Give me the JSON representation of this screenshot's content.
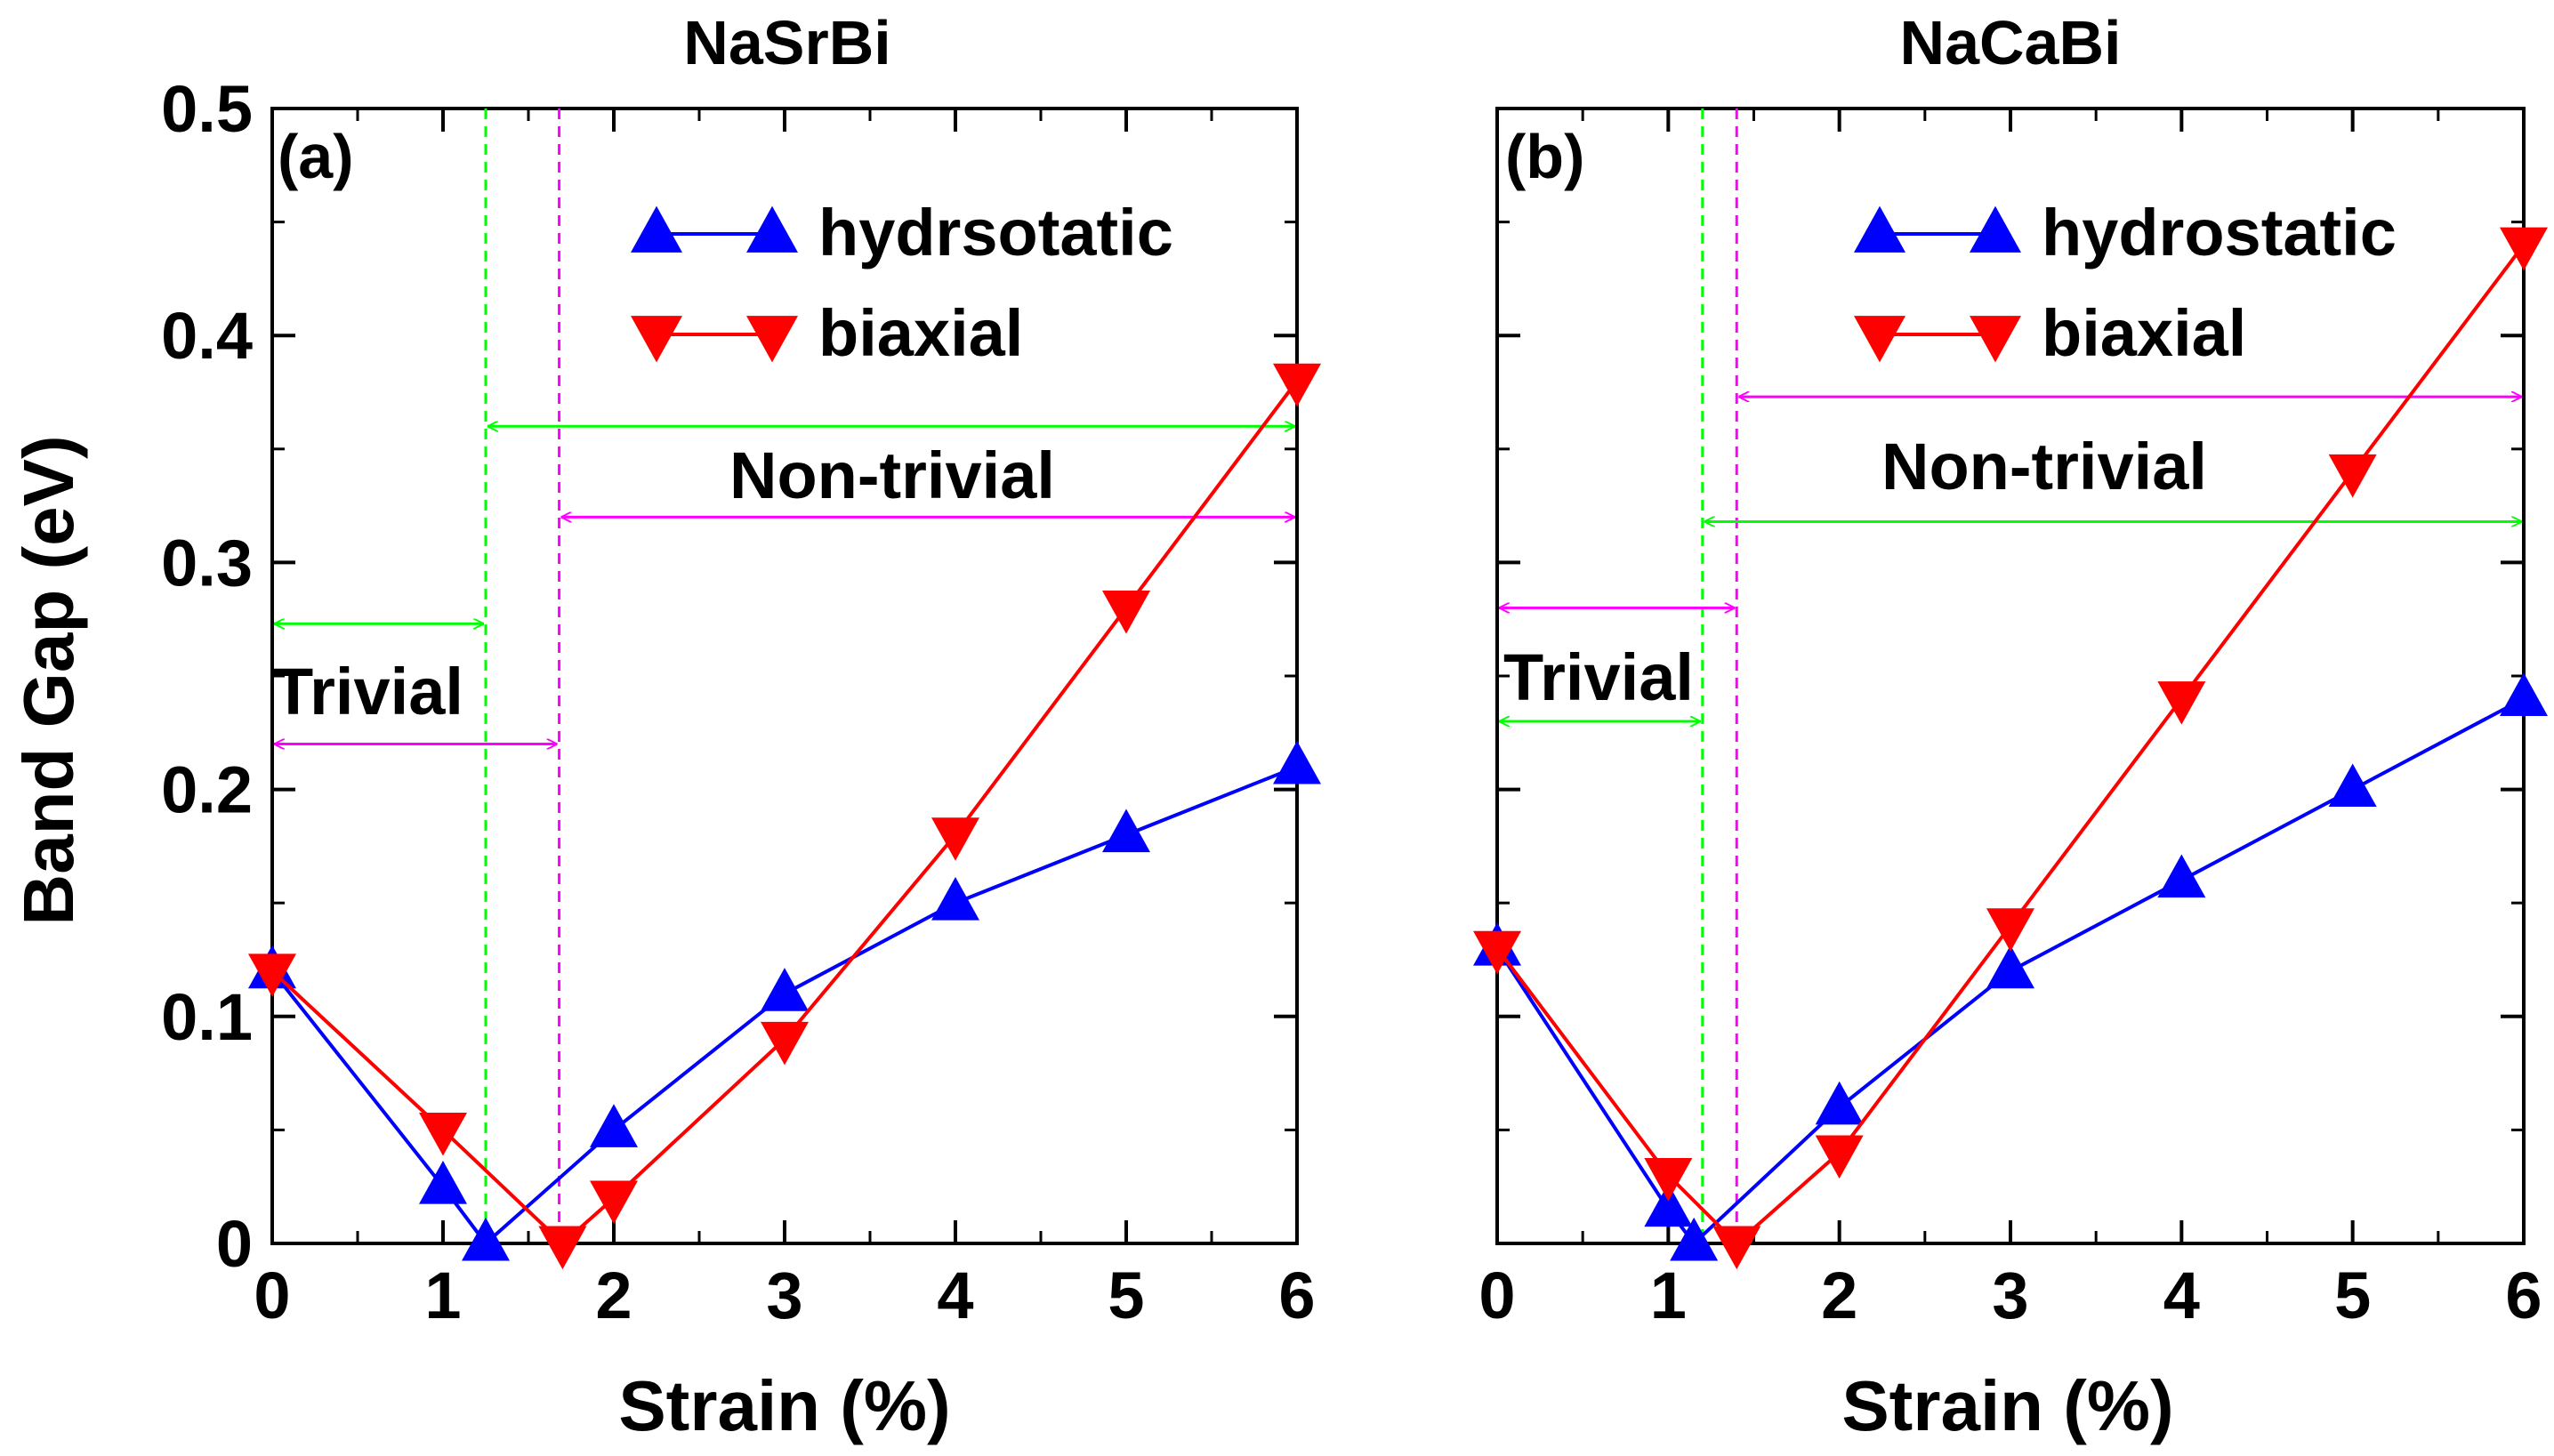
{
  "colors": {
    "hydrostatic": "#0000ff",
    "biaxial": "#ff0000",
    "green_line": "#00ff00",
    "magenta_line": "#ff00ff",
    "axis": "#000000"
  },
  "shared": {
    "ylabel": "Band Gap (eV)",
    "xlabel": "Strain (%)",
    "xlim": [
      0,
      6
    ],
    "ylim": [
      0,
      0.5
    ],
    "xticks": [
      "0",
      "1",
      "2",
      "3",
      "4",
      "5",
      "6"
    ],
    "yticks": [
      "0",
      "0.1",
      "0.2",
      "0.3",
      "0.4",
      "0.5"
    ]
  },
  "chart_data": [
    {
      "type": "line",
      "title": "NaSrBi",
      "tag": "(a)",
      "xlabel": "Strain (%)",
      "ylabel": "Band Gap (eV)",
      "xlim": [
        0,
        6
      ],
      "ylim": [
        0,
        0.5
      ],
      "series": [
        {
          "name": "hydrsotatic",
          "marker": "triangle-up",
          "x": [
            0,
            1,
            1.25,
            2,
            3,
            4,
            5,
            6
          ],
          "y": [
            0.12,
            0.025,
            0.0,
            0.05,
            0.11,
            0.15,
            0.18,
            0.21
          ]
        },
        {
          "name": "biaxial",
          "marker": "triangle-down",
          "x": [
            0,
            1,
            1.7,
            2,
            3,
            4,
            5,
            6
          ],
          "y": [
            0.12,
            0.05,
            0.0,
            0.02,
            0.09,
            0.18,
            0.28,
            0.38
          ]
        }
      ],
      "vlines": [
        {
          "x": 1.25,
          "color": "green"
        },
        {
          "x": 1.68,
          "color": "magenta"
        }
      ],
      "arrows": [
        {
          "from": 0,
          "to": 1.25,
          "y": 0.273,
          "color": "green"
        },
        {
          "from": 0,
          "to": 1.68,
          "y": 0.22,
          "color": "magenta"
        },
        {
          "from": 1.25,
          "to": 6,
          "y": 0.36,
          "color": "green"
        },
        {
          "from": 1.68,
          "to": 6,
          "y": 0.32,
          "color": "magenta"
        }
      ],
      "regions": [
        {
          "label": "Trivial",
          "x": 0.0,
          "y": 0.24
        },
        {
          "label": "Non-trivial",
          "x": 2.7,
          "y": 0.335
        }
      ]
    },
    {
      "type": "line",
      "title": "NaCaBi",
      "tag": "(b)",
      "xlabel": "Strain (%)",
      "xlim": [
        0,
        6
      ],
      "ylim": [
        0,
        0.5
      ],
      "series": [
        {
          "name": "hydrostatic",
          "marker": "triangle-up",
          "x": [
            0,
            1,
            1.15,
            2,
            3,
            4,
            5,
            6
          ],
          "y": [
            0.13,
            0.015,
            0.0,
            0.06,
            0.12,
            0.16,
            0.2,
            0.24
          ]
        },
        {
          "name": "biaxial",
          "marker": "triangle-down",
          "x": [
            0,
            1,
            1.4,
            2,
            3,
            4,
            5,
            6
          ],
          "y": [
            0.13,
            0.03,
            0.0,
            0.04,
            0.14,
            0.24,
            0.34,
            0.44
          ]
        }
      ],
      "vlines": [
        {
          "x": 1.2,
          "color": "green"
        },
        {
          "x": 1.4,
          "color": "magenta"
        }
      ],
      "arrows": [
        {
          "from": 0,
          "to": 1.4,
          "y": 0.28,
          "color": "magenta"
        },
        {
          "from": 0,
          "to": 1.2,
          "y": 0.23,
          "color": "green"
        },
        {
          "from": 1.4,
          "to": 6,
          "y": 0.373,
          "color": "magenta"
        },
        {
          "from": 1.2,
          "to": 6,
          "y": 0.318,
          "color": "green"
        }
      ],
      "regions": [
        {
          "label": "Trivial",
          "x": 0.0,
          "y": 0.245
        },
        {
          "label": "Non-trivial",
          "x": 2.3,
          "y": 0.34
        }
      ]
    }
  ]
}
